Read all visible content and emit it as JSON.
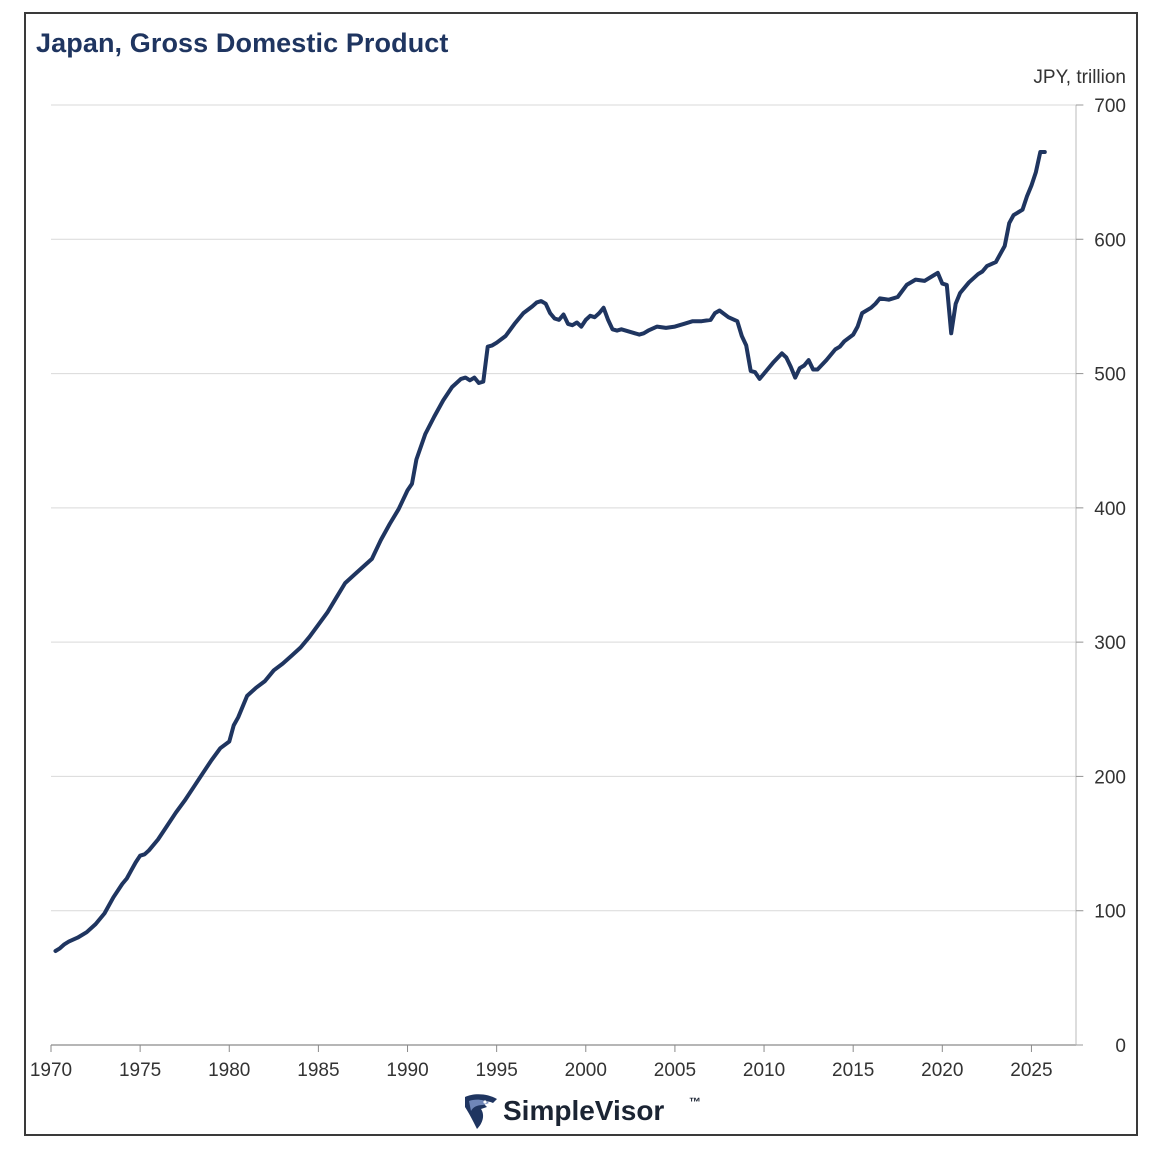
{
  "chart_data": {
    "type": "line",
    "title": "Japan, Gross Domestic Product",
    "unit_label": "JPY, trillion",
    "ylim": [
      0,
      700
    ],
    "yticks": [
      0,
      100,
      200,
      300,
      400,
      500,
      600,
      700
    ],
    "xlim": [
      1970,
      2027.5
    ],
    "xticks": [
      1970,
      1975,
      1980,
      1985,
      1990,
      1995,
      2000,
      2005,
      2010,
      2015,
      2020,
      2025
    ],
    "y_axis_side": "right",
    "grid": "horizontal",
    "line_color": "#1f3560",
    "series": [
      {
        "x": [
          1970.25,
          1970.5,
          1970.75,
          1971.0,
          1971.5,
          1972.0,
          1972.5,
          1973.0,
          1973.5,
          1974.0,
          1974.25,
          1974.5,
          1974.75,
          1975.0,
          1975.25,
          1975.5,
          1976.0,
          1976.5,
          1977.0,
          1977.5,
          1978.0,
          1978.5,
          1979.0,
          1979.5,
          1980.0,
          1980.25,
          1980.5,
          1981.0,
          1981.5,
          1982.0,
          1982.5,
          1983.0,
          1983.5,
          1984.0,
          1984.5,
          1985.0,
          1985.5,
          1986.0,
          1986.5,
          1987.0,
          1987.5,
          1988.0,
          1988.5,
          1989.0,
          1989.5,
          1990.0,
          1990.25,
          1990.5,
          1991.0,
          1991.5,
          1992.0,
          1992.5,
          1993.0,
          1993.25,
          1993.5,
          1993.75,
          1994.0,
          1994.25,
          1994.5,
          1994.75,
          1995.0,
          1995.5,
          1996.0,
          1996.5,
          1997.0,
          1997.25,
          1997.5,
          1997.75,
          1998.0,
          1998.25,
          1998.5,
          1998.75,
          1999.0,
          1999.25,
          1999.5,
          1999.75,
          2000.0,
          2000.25,
          2000.5,
          2000.75,
          2001.0,
          2001.25,
          2001.5,
          2001.75,
          2002.0,
          2002.5,
          2003.0,
          2003.25,
          2003.5,
          2004.0,
          2004.5,
          2005.0,
          2005.5,
          2006.0,
          2006.5,
          2007.0,
          2007.25,
          2007.5,
          2008.0,
          2008.5,
          2008.75,
          2009.0,
          2009.25,
          2009.5,
          2009.75,
          2010.0,
          2010.5,
          2011.0,
          2011.25,
          2011.5,
          2011.75,
          2012.0,
          2012.25,
          2012.5,
          2012.75,
          2013.0,
          2013.5,
          2014.0,
          2014.25,
          2014.5,
          2015.0,
          2015.25,
          2015.5,
          2016.0,
          2016.25,
          2016.5,
          2017.0,
          2017.5,
          2018.0,
          2018.5,
          2019.0,
          2019.5,
          2019.75,
          2020.0,
          2020.25,
          2020.5,
          2020.75,
          2021.0,
          2021.5,
          2022.0,
          2022.25,
          2022.5,
          2023.0,
          2023.5,
          2023.75,
          2024.0,
          2024.25,
          2024.5,
          2024.75,
          2025.0,
          2025.25,
          2025.5,
          2025.75
        ],
        "values": [
          70,
          72,
          75,
          77,
          80,
          84,
          90,
          98,
          110,
          120,
          124,
          130,
          136,
          141,
          142,
          145,
          153,
          163,
          173,
          182,
          192,
          202,
          212,
          221,
          226,
          238,
          244,
          260,
          266,
          271,
          279,
          284,
          290,
          296,
          304,
          313,
          322,
          333,
          344,
          350,
          356,
          362,
          376,
          388,
          399,
          413,
          418,
          436,
          455,
          468,
          480,
          490,
          496,
          497,
          495,
          497,
          493,
          494,
          520,
          521,
          523,
          528,
          537,
          545,
          550,
          553,
          554,
          552,
          545,
          541,
          540,
          544,
          537,
          536,
          538,
          535,
          540,
          543,
          542,
          545,
          549,
          540,
          533,
          532,
          533,
          531,
          529,
          530,
          532,
          535,
          534,
          535,
          537,
          539,
          539,
          540,
          545,
          547,
          542,
          539,
          528,
          521,
          502,
          501,
          496,
          500,
          508,
          515,
          512,
          505,
          497,
          504,
          506,
          510,
          503,
          503,
          510,
          518,
          520,
          524,
          529,
          535,
          545,
          549,
          552,
          556,
          555,
          557,
          566,
          570,
          569,
          573,
          575,
          567,
          566,
          530,
          552,
          560,
          568,
          574,
          576,
          580,
          583,
          595,
          612,
          618,
          620,
          622,
          632,
          640,
          650,
          665,
          665
        ]
      }
    ],
    "branding": {
      "logo_text": "SimpleVisor",
      "trademark": "™",
      "logo_icon": "eagle-head-icon"
    }
  }
}
